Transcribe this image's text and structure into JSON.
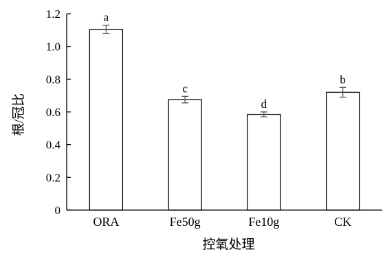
{
  "chart_data": {
    "type": "bar",
    "title": "",
    "xlabel": "控氧处理",
    "ylabel": "根/冠比",
    "categories": [
      "ORA",
      "Fe50g",
      "Fe10g",
      "CK"
    ],
    "values": [
      1.105,
      0.675,
      0.585,
      0.72
    ],
    "errors": [
      0.025,
      0.02,
      0.015,
      0.03
    ],
    "significance": [
      "a",
      "c",
      "d",
      "b"
    ],
    "ylim": [
      0,
      1.2
    ],
    "yticks": [
      0,
      0.2,
      0.4,
      0.6,
      0.8,
      1.0,
      1.2
    ],
    "ytick_labels": [
      "0",
      "0.2",
      "0.4",
      "0.6",
      "0.8",
      "1.0",
      "1.2"
    ],
    "grid": false,
    "bar_fill": "#ffffff",
    "bar_stroke": "#000000"
  }
}
